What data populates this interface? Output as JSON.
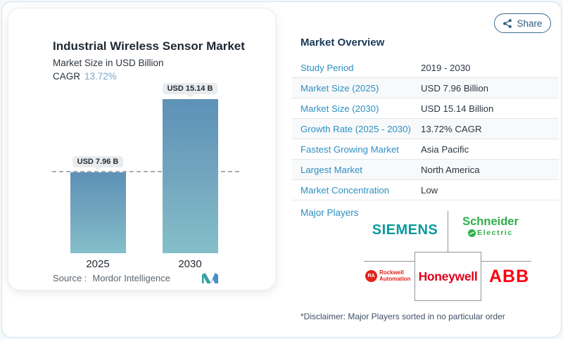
{
  "window": {
    "share_label": "Share"
  },
  "chart": {
    "title": "Industrial Wireless Sensor Market",
    "subtitle": "Market Size in USD Billion",
    "cagr_label": "CAGR",
    "cagr_value": "13.72%",
    "bars": [
      {
        "year": "2025",
        "value_label": "USD 7.96 B"
      },
      {
        "year": "2030",
        "value_label": "USD 15.14 B"
      }
    ],
    "source_label": "Source :",
    "source_name": "Mordor Intelligence"
  },
  "chart_data": {
    "type": "bar",
    "categories": [
      "2025",
      "2030"
    ],
    "values": [
      7.96,
      15.14
    ],
    "unit": "USD Billion",
    "title": "Industrial Wireless Sensor Market",
    "subtitle": "Market Size in USD Billion",
    "cagr_pct": 13.72,
    "bar_labels": [
      "USD 7.96 B",
      "USD 15.14 B"
    ],
    "ylim": [
      0,
      15.14
    ],
    "grid": false,
    "legend": "none",
    "reference_line": {
      "y": 7.96,
      "style": "dashed"
    }
  },
  "overview": {
    "heading": "Market Overview",
    "rows": [
      {
        "label": "Study Period",
        "value": "2019 - 2030"
      },
      {
        "label": "Market Size (2025)",
        "value": "USD 7.96 Billion"
      },
      {
        "label": "Market Size (2030)",
        "value": "USD 15.14 Billion"
      },
      {
        "label": "Growth Rate (2025 - 2030)",
        "value": "13.72% CAGR"
      },
      {
        "label": "Fastest Growing Market",
        "value": "Asia Pacific"
      },
      {
        "label": "Largest Market",
        "value": "North America"
      },
      {
        "label": "Market Concentration",
        "value": "Low"
      }
    ],
    "major_players_label": "Major Players",
    "players": {
      "siemens": "SIEMENS",
      "schneider_line1": "Schneider",
      "schneider_line2": "Electric",
      "rockwell_badge": "RA",
      "rockwell_line1": "Rockwell",
      "rockwell_line2": "Automation",
      "honeywell": "Honeywell",
      "abb": "ABB"
    },
    "disclaimer": "*Disclaimer: Major Players sorted in no particular order"
  },
  "colors": {
    "label_blue": "#2e90c3",
    "heading_navy": "#1a3a58",
    "cagr_blue": "#7aa6ca",
    "bar_gradient_top": "#5d91b7",
    "bar_gradient_bottom": "#85bfca",
    "share_blue": "#2b607f",
    "siemens_teal": "#0a9a9e",
    "schneider_green": "#2fae49",
    "honeywell_red": "#e0001b",
    "rockwell_red": "#e2231a",
    "abb_red": "#ff0010"
  }
}
